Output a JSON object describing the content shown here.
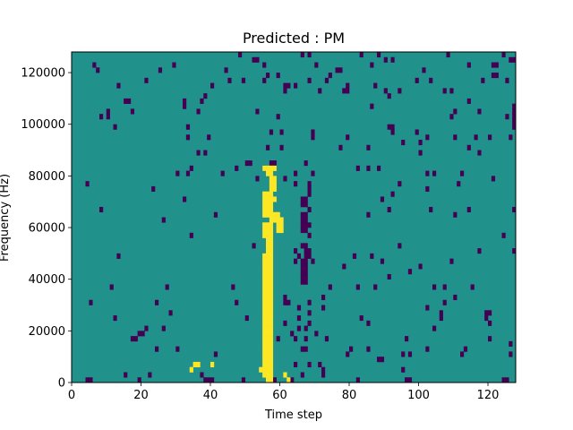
{
  "chart_data": {
    "type": "heatmap",
    "title": "Predicted : PM",
    "xlabel": "Time step",
    "ylabel": "Frequency (Hz)",
    "xlim": [
      0,
      128
    ],
    "ylim": [
      0,
      128000
    ],
    "grid": false,
    "x_ticks": [
      0,
      20,
      40,
      60,
      80,
      100,
      120
    ],
    "x_tick_labels": [
      "0",
      "20",
      "40",
      "60",
      "80",
      "100",
      "120"
    ],
    "y_ticks": [
      0,
      20000,
      40000,
      60000,
      80000,
      100000,
      120000
    ],
    "y_tick_labels": [
      "0",
      "20000",
      "40000",
      "60000",
      "80000",
      "100000",
      "120000"
    ],
    "colors": {
      "background": "#21918c",
      "high": "#fde725",
      "low": "#440154"
    },
    "rows": 64,
    "row_height_hz": 2000,
    "cells_high": [
      [
        56,
        0
      ],
      [
        57,
        0
      ],
      [
        62,
        0
      ],
      [
        61,
        1
      ],
      [
        57,
        1
      ],
      [
        55,
        1
      ],
      [
        56,
        1
      ],
      [
        34,
        2
      ],
      [
        54,
        2
      ],
      [
        55,
        2
      ],
      [
        56,
        2
      ],
      [
        57,
        2
      ],
      [
        35,
        3
      ],
      [
        36,
        3
      ],
      [
        40,
        3
      ],
      [
        56,
        3
      ],
      [
        57,
        3
      ],
      [
        55,
        3
      ],
      [
        56,
        4
      ],
      [
        57,
        4
      ],
      [
        55,
        4
      ],
      [
        56,
        5
      ],
      [
        57,
        5
      ],
      [
        55,
        5
      ],
      [
        56,
        6
      ],
      [
        57,
        6
      ],
      [
        55,
        6
      ],
      [
        56,
        7
      ],
      [
        57,
        7
      ],
      [
        55,
        7
      ],
      [
        56,
        8
      ],
      [
        57,
        8
      ],
      [
        55,
        8
      ],
      [
        56,
        9
      ],
      [
        57,
        9
      ],
      [
        55,
        9
      ],
      [
        56,
        10
      ],
      [
        57,
        10
      ],
      [
        55,
        10
      ],
      [
        56,
        11
      ],
      [
        57,
        11
      ],
      [
        55,
        11
      ],
      [
        56,
        12
      ],
      [
        57,
        12
      ],
      [
        55,
        12
      ],
      [
        56,
        13
      ],
      [
        57,
        13
      ],
      [
        55,
        13
      ],
      [
        56,
        14
      ],
      [
        57,
        14
      ],
      [
        55,
        14
      ],
      [
        56,
        15
      ],
      [
        57,
        15
      ],
      [
        55,
        15
      ],
      [
        56,
        16
      ],
      [
        57,
        16
      ],
      [
        55,
        16
      ],
      [
        56,
        17
      ],
      [
        57,
        17
      ],
      [
        55,
        17
      ],
      [
        56,
        18
      ],
      [
        57,
        18
      ],
      [
        55,
        18
      ],
      [
        56,
        19
      ],
      [
        57,
        19
      ],
      [
        55,
        19
      ],
      [
        56,
        20
      ],
      [
        57,
        20
      ],
      [
        55,
        20
      ],
      [
        56,
        21
      ],
      [
        57,
        21
      ],
      [
        55,
        21
      ],
      [
        56,
        22
      ],
      [
        57,
        22
      ],
      [
        55,
        22
      ],
      [
        56,
        23
      ],
      [
        57,
        23
      ],
      [
        55,
        23
      ],
      [
        56,
        24
      ],
      [
        57,
        24
      ],
      [
        55,
        24
      ],
      [
        56,
        25
      ],
      [
        57,
        25
      ],
      [
        56,
        26
      ],
      [
        57,
        26
      ],
      [
        56,
        27
      ],
      [
        57,
        27
      ],
      [
        56,
        28
      ],
      [
        57,
        28
      ],
      [
        55,
        28
      ],
      [
        56,
        29
      ],
      [
        57,
        29
      ],
      [
        55,
        29
      ],
      [
        59,
        29
      ],
      [
        60,
        29
      ],
      [
        56,
        30
      ],
      [
        57,
        30
      ],
      [
        55,
        30
      ],
      [
        59,
        30
      ],
      [
        60,
        30
      ],
      [
        57,
        31
      ],
      [
        58,
        31
      ],
      [
        59,
        31
      ],
      [
        60,
        31
      ],
      [
        55,
        32
      ],
      [
        56,
        32
      ],
      [
        57,
        32
      ],
      [
        58,
        32
      ],
      [
        59,
        32
      ],
      [
        55,
        33
      ],
      [
        56,
        33
      ],
      [
        57,
        33
      ],
      [
        55,
        34
      ],
      [
        56,
        34
      ],
      [
        57,
        34
      ],
      [
        55,
        35
      ],
      [
        56,
        35
      ],
      [
        57,
        35
      ],
      [
        58,
        35
      ],
      [
        55,
        36
      ],
      [
        56,
        36
      ],
      [
        57,
        36
      ],
      [
        57,
        37
      ],
      [
        58,
        37
      ],
      [
        57,
        38
      ],
      [
        58,
        38
      ],
      [
        57,
        39
      ],
      [
        58,
        39
      ],
      [
        56,
        40
      ],
      [
        57,
        40
      ],
      [
        55,
        41
      ],
      [
        56,
        41
      ],
      [
        57,
        41
      ],
      [
        58,
        41
      ]
    ],
    "cells_low": [
      [
        4,
        0
      ],
      [
        5,
        0
      ],
      [
        19,
        0
      ],
      [
        38,
        0
      ],
      [
        39,
        0
      ],
      [
        40,
        0
      ],
      [
        49,
        0
      ],
      [
        58,
        0
      ],
      [
        63,
        0
      ],
      [
        82,
        0
      ],
      [
        96,
        0
      ],
      [
        97,
        0
      ],
      [
        124,
        0
      ],
      [
        125,
        0
      ],
      [
        15,
        1
      ],
      [
        22,
        1
      ],
      [
        37,
        1
      ],
      [
        66,
        1
      ],
      [
        72,
        1
      ],
      [
        72,
        2
      ],
      [
        95,
        2
      ],
      [
        64,
        3
      ],
      [
        68,
        3
      ],
      [
        71,
        3
      ],
      [
        88,
        4
      ],
      [
        89,
        4
      ],
      [
        41,
        5
      ],
      [
        79,
        5
      ],
      [
        95,
        5
      ],
      [
        97,
        5
      ],
      [
        112,
        5
      ],
      [
        126,
        5
      ],
      [
        24,
        6
      ],
      [
        30,
        6
      ],
      [
        66,
        6
      ],
      [
        67,
        6
      ],
      [
        80,
        6
      ],
      [
        85,
        6
      ],
      [
        102,
        6
      ],
      [
        113,
        6
      ],
      [
        126,
        7
      ],
      [
        17,
        8
      ],
      [
        18,
        8
      ],
      [
        59,
        8
      ],
      [
        64,
        8
      ],
      [
        67,
        8
      ],
      [
        73,
        8
      ],
      [
        96,
        8
      ],
      [
        120,
        8
      ],
      [
        19,
        9
      ],
      [
        20,
        9
      ],
      [
        63,
        9
      ],
      [
        70,
        9
      ],
      [
        21,
        10
      ],
      [
        26,
        10
      ],
      [
        65,
        10
      ],
      [
        67,
        10
      ],
      [
        104,
        10
      ],
      [
        61,
        11
      ],
      [
        68,
        11
      ],
      [
        85,
        11
      ],
      [
        120,
        11
      ],
      [
        12,
        12
      ],
      [
        50,
        12
      ],
      [
        65,
        12
      ],
      [
        83,
        12
      ],
      [
        106,
        12
      ],
      [
        119,
        12
      ],
      [
        28,
        13
      ],
      [
        56,
        13
      ],
      [
        68,
        13
      ],
      [
        106,
        13
      ],
      [
        119,
        13
      ],
      [
        120,
        13
      ],
      [
        65,
        14
      ],
      [
        72,
        14
      ],
      [
        102,
        14
      ],
      [
        5,
        15
      ],
      [
        24,
        15
      ],
      [
        47,
        15
      ],
      [
        61,
        15
      ],
      [
        62,
        15
      ],
      [
        68,
        15
      ],
      [
        107,
        15
      ],
      [
        61,
        16
      ],
      [
        72,
        16
      ],
      [
        110,
        16
      ],
      [
        11,
        18
      ],
      [
        27,
        18
      ],
      [
        46,
        18
      ],
      [
        74,
        18
      ],
      [
        82,
        18
      ],
      [
        87,
        18
      ],
      [
        104,
        18
      ],
      [
        107,
        18
      ],
      [
        115,
        18
      ],
      [
        66,
        19
      ],
      [
        67,
        19
      ],
      [
        66,
        20
      ],
      [
        67,
        20
      ],
      [
        91,
        20
      ],
      [
        66,
        21
      ],
      [
        67,
        21
      ],
      [
        97,
        21
      ],
      [
        66,
        22
      ],
      [
        67,
        22
      ],
      [
        78,
        22
      ],
      [
        100,
        22
      ],
      [
        64,
        23
      ],
      [
        66,
        23
      ],
      [
        67,
        23
      ],
      [
        69,
        23
      ],
      [
        89,
        23
      ],
      [
        109,
        23
      ],
      [
        13,
        24
      ],
      [
        65,
        24
      ],
      [
        67,
        24
      ],
      [
        68,
        24
      ],
      [
        81,
        24
      ],
      [
        86,
        24
      ],
      [
        64,
        25
      ],
      [
        67,
        25
      ],
      [
        68,
        25
      ],
      [
        117,
        25
      ],
      [
        127,
        25
      ],
      [
        52,
        26
      ],
      [
        66,
        26
      ],
      [
        67,
        26
      ],
      [
        94,
        26
      ],
      [
        34,
        28
      ],
      [
        68,
        28
      ],
      [
        124,
        28
      ],
      [
        66,
        29
      ],
      [
        67,
        29
      ],
      [
        66,
        30
      ],
      [
        67,
        30
      ],
      [
        68,
        30
      ],
      [
        26,
        31
      ],
      [
        66,
        31
      ],
      [
        67,
        31
      ],
      [
        41,
        32
      ],
      [
        66,
        32
      ],
      [
        67,
        32
      ],
      [
        85,
        32
      ],
      [
        110,
        32
      ],
      [
        8,
        33
      ],
      [
        68,
        33
      ],
      [
        91,
        33
      ],
      [
        103,
        33
      ],
      [
        114,
        33
      ],
      [
        127,
        33
      ],
      [
        66,
        34
      ],
      [
        67,
        34
      ],
      [
        32,
        35
      ],
      [
        66,
        35
      ],
      [
        67,
        35
      ],
      [
        89,
        35
      ],
      [
        68,
        36
      ],
      [
        92,
        36
      ],
      [
        23,
        37
      ],
      [
        68,
        37
      ],
      [
        102,
        37
      ],
      [
        4,
        38
      ],
      [
        64,
        38
      ],
      [
        68,
        38
      ],
      [
        94,
        38
      ],
      [
        111,
        38
      ],
      [
        53,
        39
      ],
      [
        61,
        39
      ],
      [
        121,
        39
      ],
      [
        30,
        40
      ],
      [
        33,
        40
      ],
      [
        43,
        40
      ],
      [
        64,
        40
      ],
      [
        69,
        40
      ],
      [
        102,
        40
      ],
      [
        104,
        40
      ],
      [
        112,
        40
      ],
      [
        34,
        41
      ],
      [
        47,
        41
      ],
      [
        55,
        41
      ],
      [
        82,
        41
      ],
      [
        85,
        41
      ],
      [
        88,
        41
      ],
      [
        50,
        42
      ],
      [
        51,
        42
      ],
      [
        57,
        42
      ],
      [
        58,
        42
      ],
      [
        67,
        42
      ],
      [
        36,
        44
      ],
      [
        38,
        44
      ],
      [
        100,
        44
      ],
      [
        117,
        44
      ],
      [
        56,
        45
      ],
      [
        60,
        45
      ],
      [
        77,
        45
      ],
      [
        85,
        45
      ],
      [
        114,
        45
      ],
      [
        95,
        46
      ],
      [
        100,
        46
      ],
      [
        33,
        47
      ],
      [
        39,
        47
      ],
      [
        69,
        47
      ],
      [
        79,
        47
      ],
      [
        102,
        47
      ],
      [
        110,
        47
      ],
      [
        116,
        47
      ],
      [
        120,
        47
      ],
      [
        126,
        47
      ],
      [
        57,
        48
      ],
      [
        60,
        48
      ],
      [
        69,
        48
      ],
      [
        92,
        48
      ],
      [
        99,
        48
      ],
      [
        12,
        49
      ],
      [
        33,
        49
      ],
      [
        91,
        49
      ],
      [
        92,
        49
      ],
      [
        127,
        49
      ],
      [
        127,
        50
      ],
      [
        8,
        51
      ],
      [
        10,
        51
      ],
      [
        59,
        51
      ],
      [
        109,
        51
      ],
      [
        125,
        51
      ],
      [
        127,
        51
      ],
      [
        10,
        52
      ],
      [
        17,
        52
      ],
      [
        36,
        52
      ],
      [
        53,
        52
      ],
      [
        110,
        52
      ],
      [
        117,
        52
      ],
      [
        127,
        52
      ],
      [
        32,
        53
      ],
      [
        86,
        53
      ],
      [
        127,
        53
      ],
      [
        15,
        54
      ],
      [
        16,
        54
      ],
      [
        32,
        54
      ],
      [
        37,
        54
      ],
      [
        114,
        54
      ],
      [
        38,
        55
      ],
      [
        91,
        55
      ],
      [
        61,
        56
      ],
      [
        71,
        56
      ],
      [
        78,
        56
      ],
      [
        79,
        56
      ],
      [
        90,
        56
      ],
      [
        94,
        56
      ],
      [
        107,
        56
      ],
      [
        109,
        56
      ],
      [
        13,
        57
      ],
      [
        40,
        57
      ],
      [
        61,
        57
      ],
      [
        62,
        57
      ],
      [
        64,
        57
      ],
      [
        79,
        57
      ],
      [
        87,
        57
      ],
      [
        21,
        58
      ],
      [
        45,
        58
      ],
      [
        49,
        58
      ],
      [
        55,
        58
      ],
      [
        68,
        58
      ],
      [
        73,
        58
      ],
      [
        99,
        58
      ],
      [
        103,
        58
      ],
      [
        118,
        58
      ],
      [
        125,
        58
      ],
      [
        56,
        59
      ],
      [
        59,
        59
      ],
      [
        74,
        59
      ],
      [
        121,
        59
      ],
      [
        122,
        59
      ],
      [
        7,
        60
      ],
      [
        25,
        60
      ],
      [
        44,
        60
      ],
      [
        76,
        60
      ],
      [
        77,
        60
      ],
      [
        101,
        60
      ],
      [
        6,
        61
      ],
      [
        29,
        61
      ],
      [
        55,
        61
      ],
      [
        70,
        61
      ],
      [
        86,
        61
      ],
      [
        114,
        61
      ],
      [
        121,
        61
      ],
      [
        122,
        61
      ],
      [
        52,
        62
      ],
      [
        53,
        62
      ],
      [
        90,
        62
      ],
      [
        92,
        62
      ],
      [
        126,
        62
      ],
      [
        127,
        62
      ],
      [
        48,
        63
      ],
      [
        66,
        63
      ],
      [
        68,
        63
      ],
      [
        83,
        63
      ],
      [
        88,
        63
      ],
      [
        108,
        63
      ],
      [
        124,
        63
      ]
    ]
  }
}
